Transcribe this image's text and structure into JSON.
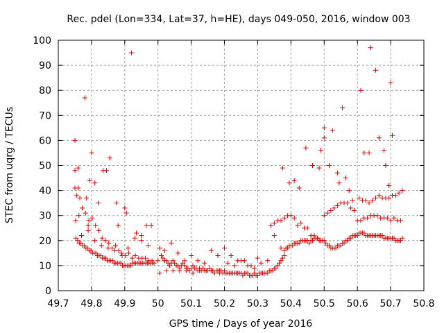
{
  "chart_data": {
    "type": "scatter",
    "title": "Rec. pdel (Lon=334, Lat=37, h=HE), days 049-050, 2016, window 003",
    "xlabel": "GPS time / Days of year 2016",
    "ylabel": "STEC from uqrg / TECUs",
    "xlim": [
      49.7,
      50.8
    ],
    "ylim": [
      0,
      100
    ],
    "xticks": [
      49.7,
      49.8,
      49.9,
      50.0,
      50.1,
      50.2,
      50.3,
      50.4,
      50.5,
      50.6,
      50.7,
      50.8
    ],
    "xtick_labels": [
      "49.7",
      "49.8",
      "49.9",
      "50",
      "50.1",
      "50.2",
      "50.3",
      "50.4",
      "50.5",
      "50.6",
      "50.7",
      "50.8"
    ],
    "yticks": [
      0,
      10,
      20,
      30,
      40,
      50,
      60,
      70,
      80,
      90,
      100
    ],
    "ytick_labels": [
      "0",
      "10",
      "20",
      "30",
      "40",
      "50",
      "60",
      "70",
      "80",
      "90",
      "100"
    ],
    "grid": true,
    "marker": "+",
    "color": "#dd0000",
    "series": [
      {
        "name": "STEC",
        "x": [
          49.75,
          49.75,
          49.75,
          49.755,
          49.76,
          49.76,
          49.765,
          49.77,
          49.78,
          49.785,
          49.79,
          49.795,
          49.8,
          49.81,
          49.82,
          49.835,
          49.845,
          49.855,
          49.875,
          49.88,
          49.9,
          49.905,
          49.92,
          49.935,
          49.95,
          49.965,
          49.98,
          49.753,
          49.758,
          49.763,
          49.768,
          49.773,
          49.778,
          49.783,
          49.788,
          49.793,
          49.798,
          49.803,
          49.808,
          49.813,
          49.818,
          49.823,
          49.828,
          49.833,
          49.838,
          49.843,
          49.848,
          49.853,
          49.858,
          49.863,
          49.868,
          49.873,
          49.878,
          49.883,
          49.888,
          49.893,
          49.898,
          49.903,
          49.908,
          49.913,
          49.918,
          49.923,
          49.928,
          49.933,
          49.938,
          49.943,
          49.948,
          49.953,
          49.958,
          49.963,
          49.968,
          49.973,
          49.978,
          49.983,
          49.988,
          49.752,
          49.762,
          49.772,
          49.782,
          49.792,
          49.802,
          49.812,
          49.822,
          49.832,
          49.842,
          49.852,
          49.862,
          49.872,
          49.882,
          49.892,
          49.902,
          49.912,
          49.922,
          49.932,
          49.942,
          49.952,
          49.962,
          49.972,
          49.982,
          49.77,
          49.79,
          49.81,
          49.83,
          49.85,
          49.87,
          49.89,
          49.91,
          49.93,
          49.95,
          49.97,
          50.005,
          50.01,
          50.015,
          50.02,
          50.025,
          50.03,
          50.035,
          50.04,
          50.045,
          50.05,
          50.055,
          50.06,
          50.065,
          50.07,
          50.075,
          50.08,
          50.085,
          50.09,
          50.095,
          50.1,
          50.105,
          50.11,
          50.115,
          50.12,
          50.125,
          50.13,
          50.135,
          50.14,
          50.145,
          50.15,
          50.155,
          50.16,
          50.165,
          50.17,
          50.175,
          50.18,
          50.185,
          50.19,
          50.195,
          50.0,
          50.02,
          50.04,
          50.06,
          50.08,
          50.1,
          50.12,
          50.14,
          50.16,
          50.18,
          50.2,
          50.22,
          50.24,
          50.26,
          50.28,
          50.3,
          50.005,
          50.025,
          50.045,
          50.065,
          50.085,
          50.105,
          50.125,
          50.145,
          50.165,
          50.185,
          50.2,
          50.205,
          50.21,
          50.215,
          50.22,
          50.225,
          50.23,
          50.235,
          50.24,
          50.245,
          50.25,
          50.255,
          50.26,
          50.265,
          50.27,
          50.275,
          50.28,
          50.285,
          50.29,
          50.295,
          50.3,
          50.305,
          50.31,
          50.315,
          50.32,
          50.325,
          50.33,
          50.335,
          50.34,
          50.345,
          50.35,
          50.355,
          50.36,
          50.365,
          50.37,
          50.375,
          50.38,
          50.21,
          50.23,
          50.25,
          50.27,
          50.29,
          50.31,
          50.33,
          50.35,
          50.37,
          50.38,
          50.385,
          50.39,
          50.395,
          50.4,
          50.405,
          50.41,
          50.415,
          50.42,
          50.425,
          50.43,
          50.435,
          50.44,
          50.445,
          50.45,
          50.455,
          50.46,
          50.465,
          50.47,
          50.475,
          50.48,
          50.485,
          50.49,
          50.495,
          50.34,
          50.35,
          50.36,
          50.37,
          50.38,
          50.39,
          50.4,
          50.41,
          50.42,
          50.43,
          50.44,
          50.45,
          50.46,
          50.47,
          50.48,
          50.49,
          50.375,
          50.395,
          50.41,
          50.425,
          50.445,
          50.465,
          50.485,
          50.49,
          50.5,
          50.5,
          50.515,
          50.5,
          50.505,
          50.51,
          50.515,
          50.52,
          50.525,
          50.53,
          50.535,
          50.54,
          50.545,
          50.55,
          50.555,
          50.56,
          50.565,
          50.57,
          50.575,
          50.58,
          50.585,
          50.59,
          50.595,
          50.5,
          50.51,
          50.52,
          50.53,
          50.54,
          50.55,
          50.56,
          50.57,
          50.58,
          50.59,
          50.525,
          50.54,
          50.545,
          50.555,
          50.565,
          50.575,
          50.585,
          50.6,
          50.605,
          50.61,
          50.615,
          50.62,
          50.625,
          50.63,
          50.635,
          50.64,
          50.645,
          50.65,
          50.655,
          50.66,
          50.665,
          50.67,
          50.675,
          50.68,
          50.685,
          50.69,
          50.695,
          50.7,
          50.705,
          50.71,
          50.715,
          50.72,
          50.725,
          50.73,
          50.735,
          50.6,
          50.61,
          50.62,
          50.63,
          50.64,
          50.65,
          50.66,
          50.67,
          50.68,
          50.69,
          50.7,
          50.71,
          50.72,
          50.73,
          50.605,
          50.615,
          50.625,
          50.635,
          50.645,
          50.655,
          50.665,
          50.675,
          50.685,
          50.695,
          50.705,
          50.715,
          50.725,
          50.735,
          50.61,
          50.62,
          50.635,
          50.64,
          50.655,
          50.665,
          50.68,
          50.685,
          50.695,
          50.7,
          50.705
        ],
        "y": [
          60,
          48,
          41,
          38,
          49,
          41,
          37,
          22,
          77,
          37,
          26,
          44,
          55,
          43,
          35,
          48,
          48,
          53,
          35,
          26,
          33,
          31,
          95,
          23,
          22,
          26,
          26,
          21,
          20,
          19,
          19,
          18,
          18,
          17,
          17,
          16,
          16,
          15,
          15,
          15,
          14,
          14,
          14,
          13,
          13,
          13,
          12,
          12,
          12,
          12,
          11,
          11,
          11,
          11,
          11,
          10,
          10,
          10,
          10,
          10,
          10,
          11,
          11,
          11,
          11,
          11,
          11,
          11,
          11,
          11,
          11,
          11,
          11,
          11,
          11,
          28,
          30,
          33,
          31,
          28,
          29,
          26,
          24,
          21,
          20,
          19,
          17,
          18,
          16,
          14,
          14,
          15,
          13,
          14,
          13,
          13,
          13,
          12,
          12,
          22,
          24,
          20,
          18,
          17,
          16,
          15,
          17,
          21,
          20,
          18,
          17,
          14,
          13,
          12,
          12,
          11,
          10,
          11,
          12,
          11,
          10,
          10,
          9,
          10,
          11,
          10,
          9,
          9,
          8,
          9,
          10,
          9,
          9,
          8,
          9,
          8,
          9,
          8,
          8,
          8,
          9,
          8,
          8,
          7,
          8,
          8,
          8,
          8,
          7,
          12,
          16,
          19,
          15,
          12,
          14,
          12,
          11,
          16,
          14,
          17,
          14,
          12,
          12,
          10,
          13,
          7,
          8,
          8,
          8,
          8,
          7,
          8,
          8,
          8,
          7,
          8,
          7,
          7,
          7,
          7,
          7,
          7,
          7,
          7,
          7,
          7,
          6,
          7,
          7,
          7,
          6,
          6,
          6,
          7,
          6,
          6,
          7,
          7,
          7,
          7,
          7,
          7,
          8,
          8,
          8,
          9,
          9,
          10,
          11,
          12,
          13,
          14,
          11,
          10,
          12,
          10,
          9,
          11,
          12,
          22,
          17,
          16,
          17,
          17,
          18,
          18,
          18,
          19,
          19,
          19,
          19,
          20,
          20,
          20,
          20,
          20,
          19,
          20,
          20,
          21,
          21,
          21,
          20,
          20,
          20,
          26,
          27,
          28,
          28,
          29,
          30,
          30,
          29,
          26,
          27,
          25,
          25,
          22,
          22,
          21,
          20,
          49,
          43,
          44,
          41,
          57,
          50,
          49,
          56,
          65,
          61,
          50,
          20,
          19,
          18,
          18,
          17,
          17,
          17,
          17,
          18,
          18,
          18,
          19,
          19,
          20,
          20,
          21,
          21,
          22,
          22,
          22,
          30,
          31,
          32,
          33,
          34,
          35,
          35,
          35,
          33,
          32,
          64,
          47,
          43,
          73,
          45,
          40,
          36,
          22,
          23,
          23,
          23,
          23,
          22,
          22,
          22,
          22,
          22,
          22,
          22,
          22,
          22,
          22,
          22,
          21,
          21,
          21,
          21,
          21,
          21,
          21,
          20,
          20,
          20,
          20,
          21,
          28,
          28,
          29,
          29,
          30,
          30,
          30,
          29,
          29,
          29,
          28,
          29,
          28,
          28,
          37,
          36,
          36,
          35,
          36,
          37,
          38,
          37,
          37,
          37,
          38,
          38,
          39,
          40,
          80,
          55,
          55,
          97,
          88,
          61,
          56,
          50,
          42,
          83,
          62
        ]
      }
    ]
  }
}
